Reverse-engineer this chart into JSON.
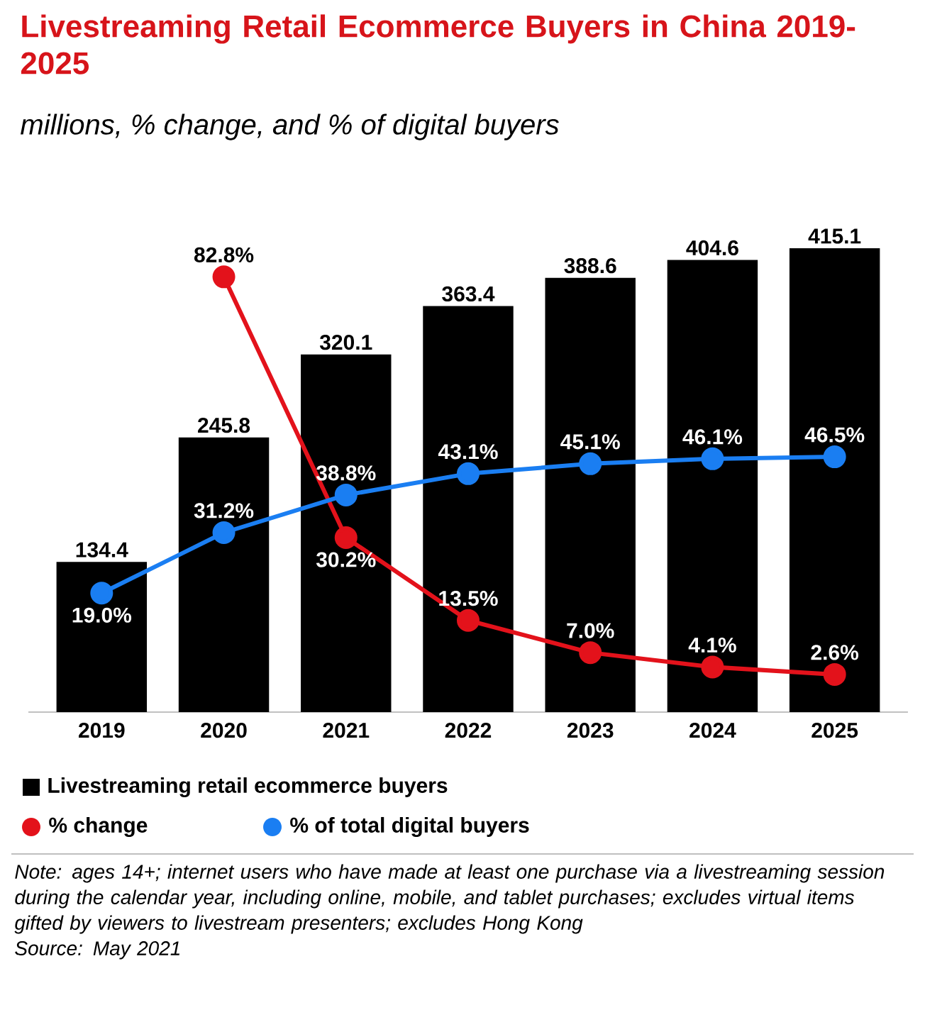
{
  "chart_data": {
    "type": "bar",
    "title": "Livestreaming Retail Ecommerce Buyers in China 2019-2025",
    "subtitle": "millions, % change, and % of digital buyers",
    "categories": [
      "2019",
      "2020",
      "2021",
      "2022",
      "2023",
      "2024",
      "2025"
    ],
    "series": [
      {
        "name": "Livestreaming retail ecommerce buyers",
        "color": "#000000",
        "values": [
          134.4,
          245.8,
          320.1,
          363.4,
          388.6,
          404.6,
          415.1
        ],
        "value_labels": [
          "134.4",
          "245.8",
          "320.1",
          "363.4",
          "388.6",
          "404.6",
          "415.1"
        ]
      },
      {
        "name": "% change",
        "type": "line",
        "axis": "y2",
        "color": "#e3121b",
        "values": [
          null,
          82.8,
          30.2,
          13.5,
          7.0,
          4.1,
          2.6
        ],
        "value_labels": [
          null,
          "82.8%",
          "30.2%",
          "13.5%",
          "7.0%",
          "4.1%",
          "2.6%"
        ]
      },
      {
        "name": "% of total digital buyers",
        "type": "line",
        "axis": "y2",
        "color": "#1a7ef2",
        "values": [
          19.0,
          31.2,
          38.8,
          43.1,
          45.1,
          46.1,
          46.5
        ],
        "value_labels": [
          "19.0%",
          "31.2%",
          "38.8%",
          "43.1%",
          "45.1%",
          "46.1%",
          "46.5%"
        ]
      }
    ],
    "marker": "circle",
    "line_style": "solid",
    "legend": "bottom",
    "tick_labels": "x",
    "annotations": [
      "Note: ages 14+; internet users who have made at least one purchase via a livestreaming session during the calendar year, including online, mobile, and tablet purchases; excludes virtual items gifted by viewers to livestream presenters; excludes Hong Kong",
      "Source: May 2021"
    ]
  }
}
